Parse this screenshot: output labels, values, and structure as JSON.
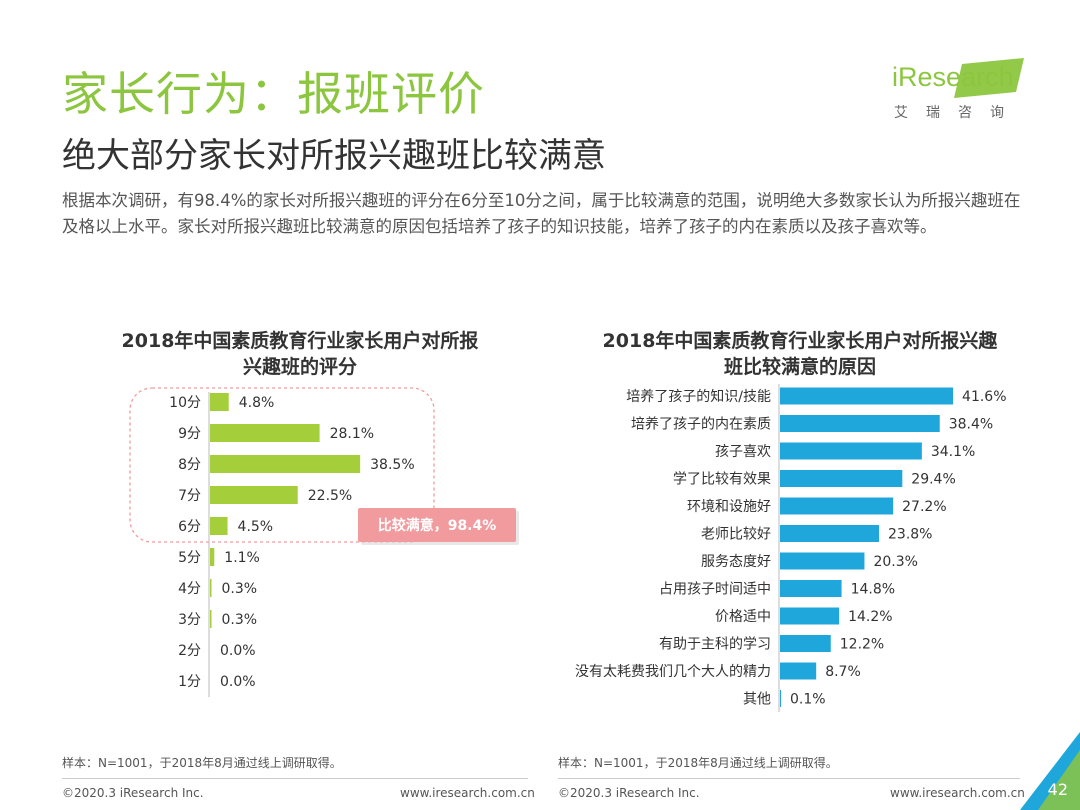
{
  "header": {
    "title": "家长行为：报班评价",
    "subtitle": "绝大部分家长对所报兴趣班比较满意",
    "description": "根据本次调研，有98.4%的家长对所报兴趣班的评分在6分至10分之间，属于比较满意的范围，说明绝大多数家长认为所报兴趣班在及格以上水平。家长对所报兴趣班比较满意的原因包括培养了孩子的知识技能，培养了孩子的内在素质以及孩子喜欢等。"
  },
  "logo": {
    "brand": "iResearch",
    "sub": "艾瑞咨询"
  },
  "colors": {
    "title_green": "#8cc63f",
    "bar_green": "#a5cf3a",
    "bar_blue": "#1fa7dc",
    "highlight_red": "#e8656c",
    "callout_pink": "#f29b9f"
  },
  "chart_data": [
    {
      "type": "bar",
      "orientation": "horizontal",
      "title": "2018年中国素质教育行业家长用户对所报兴趣班的评分",
      "categories": [
        "10分",
        "9分",
        "8分",
        "7分",
        "6分",
        "5分",
        "4分",
        "3分",
        "2分",
        "1分"
      ],
      "values": [
        4.8,
        28.1,
        38.5,
        22.5,
        4.5,
        1.1,
        0.3,
        0.3,
        0.0,
        0.0
      ],
      "value_labels": [
        "4.8%",
        "28.1%",
        "38.5%",
        "22.5%",
        "4.5%",
        "1.1%",
        "0.3%",
        "0.3%",
        "0.0%",
        "0.0%"
      ],
      "unit": "%",
      "color": "#a5cf3a",
      "annotation": "比较满意，98.4%"
    },
    {
      "type": "bar",
      "orientation": "horizontal",
      "title": "2018年中国素质教育行业家长用户对所报兴趣班比较满意的原因",
      "categories": [
        "培养了孩子的知识/技能",
        "培养了孩子的内在素质",
        "孩子喜欢",
        "学了比较有效果",
        "环境和设施好",
        "老师比较好",
        "服务态度好",
        "占用孩子时间适中",
        "价格适中",
        "有助于主科的学习",
        "没有太耗费我们几个大人的精力",
        "其他"
      ],
      "values": [
        41.6,
        38.4,
        34.1,
        29.4,
        27.2,
        23.8,
        20.3,
        14.8,
        14.2,
        12.2,
        8.7,
        0.1
      ],
      "value_labels": [
        "41.6%",
        "38.4%",
        "34.1%",
        "29.4%",
        "27.2%",
        "23.8%",
        "20.3%",
        "14.8%",
        "14.2%",
        "12.2%",
        "8.7%",
        "0.1%"
      ],
      "unit": "%",
      "color": "#1fa7dc"
    }
  ],
  "footer": {
    "source_left": "样本：N=1001，于2018年8月通过线上调研取得。",
    "source_right": "样本：N=1001，于2018年8月通过线上调研取得。",
    "copyright_left": "©2020.3 iResearch Inc.",
    "url_left": "www.iresearch.com.cn",
    "copyright_right": "©2020.3 iResearch Inc.",
    "url_right": "www.iresearch.com.cn",
    "page_number": "42"
  }
}
